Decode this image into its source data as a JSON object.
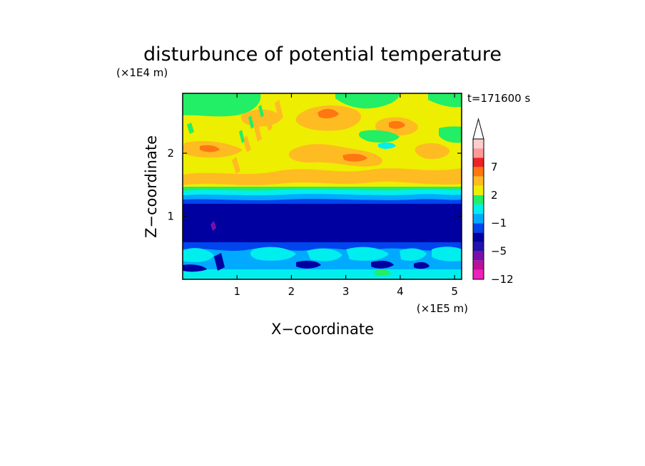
{
  "chart_data": {
    "type": "contour",
    "title": "disturbunce of potential temperature",
    "xlabel": "X−coordinate",
    "ylabel": "Z−coordinate",
    "x_unit": "(×1E5 m)",
    "y_unit": "(×1E4 m)",
    "time_label": "t=171600 s",
    "xlim": [
      0,
      5.13
    ],
    "ylim": [
      0,
      2.95
    ],
    "x_ticks": [
      1,
      2,
      3,
      4,
      5
    ],
    "x_tick_labels": [
      "1",
      "2",
      "3",
      "4",
      "5"
    ],
    "y_ticks": [
      1,
      2
    ],
    "y_tick_labels": [
      "1",
      "2"
    ],
    "colorbar": {
      "levels": [
        -12,
        -9,
        -7,
        -5,
        -3,
        -2,
        -1,
        0,
        1,
        2,
        3,
        5,
        7,
        9,
        12
      ],
      "tick_values": [
        -12,
        -5,
        -1,
        2,
        7
      ],
      "tick_labels": [
        "−12",
        "−5",
        "−1",
        "2",
        "7"
      ],
      "colors": [
        "#ee22bb",
        "#bb1199",
        "#7711aa",
        "#2211aa",
        "#0000a0",
        "#0044ee",
        "#00aaff",
        "#00eeee",
        "#22ee66",
        "#eeee00",
        "#ffbb22",
        "#ff7711",
        "#ee2222",
        "#ff9999",
        "#ffcccc"
      ],
      "extend": "max"
    },
    "bands": [
      {
        "z_range": [
          0,
          0.3
        ],
        "value_range": [
          -3,
          -1
        ],
        "description": "lowest layer, blue/cyan mix"
      },
      {
        "z_range": [
          0.3,
          0.6
        ],
        "value_range": [
          -2,
          0
        ],
        "description": "cyan patches"
      },
      {
        "z_range": [
          0.6,
          1.3
        ],
        "value_range": [
          -5,
          -3
        ],
        "description": "dark navy band"
      },
      {
        "z_range": [
          1.3,
          1.45
        ],
        "value_range": [
          -2,
          1
        ],
        "description": "transition blue/cyan/green"
      },
      {
        "z_range": [
          1.45,
          2.95
        ],
        "value_range": [
          1,
          5
        ],
        "description": "upper yellow/orange waves"
      }
    ]
  }
}
